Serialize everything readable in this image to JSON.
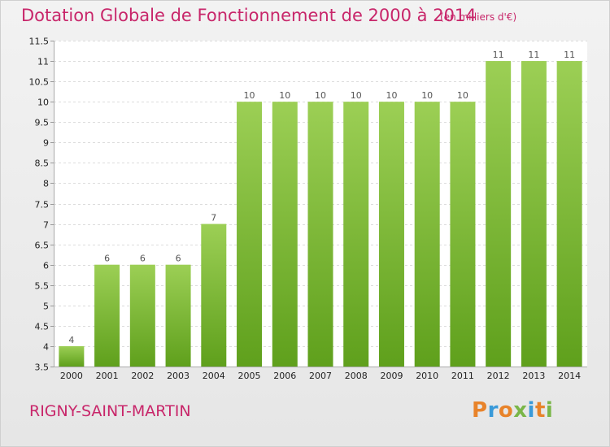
{
  "header": {
    "title": "Dotation Globale de Fonctionnement de 2000 à 2014",
    "unit": "(en milliers d'€)"
  },
  "footer": {
    "commune": "RIGNY-SAINT-MARTIN",
    "brand": [
      "P",
      "r",
      "o",
      "x",
      "i",
      "t",
      "i"
    ],
    "brand_colors": [
      "#e8832a",
      "#3a9ad9",
      "#e8832a",
      "#7ab648",
      "#3a9ad9",
      "#e8832a",
      "#7ab648"
    ]
  },
  "colors": {
    "accent": "#c8266a",
    "bar_top": "#9ccf55",
    "bar_bottom": "#5fa01c"
  },
  "chart_data": {
    "type": "bar",
    "categories": [
      "2000",
      "2001",
      "2002",
      "2003",
      "2004",
      "2005",
      "2006",
      "2007",
      "2008",
      "2009",
      "2010",
      "2011",
      "2012",
      "2013",
      "2014"
    ],
    "values": [
      4,
      6,
      6,
      6,
      7,
      10,
      10,
      10,
      10,
      10,
      10,
      10,
      11,
      11,
      11
    ],
    "data_labels": [
      "4",
      "6",
      "6",
      "6",
      "7",
      "10",
      "10",
      "10",
      "10",
      "10",
      "10",
      "10",
      "11",
      "11",
      "11"
    ],
    "ylim": [
      3.5,
      11.5
    ],
    "yticks": [
      "3.5",
      "4",
      "4.5",
      "5",
      "5.5",
      "6",
      "6.5",
      "7",
      "7.5",
      "8",
      "8.5",
      "9",
      "9.5",
      "10",
      "10.5",
      "11",
      "11.5"
    ],
    "grid": true
  }
}
